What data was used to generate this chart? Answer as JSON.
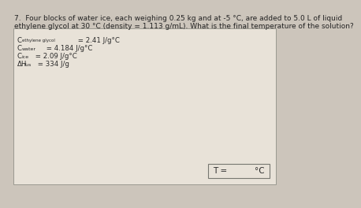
{
  "title_line1": "7.  Four blocks of water ice, each weighing 0.25 kg and at -5 °C, are added to 5.0 L of liquid",
  "title_line2": "ethylene glycol at 30 °C (density = 1.113 g/mL). What is the final temperature of the solution?",
  "line1_main": "C",
  "line1_sub": "ethylene glycol",
  "line1_rest": " = 2.41 J/g°C",
  "line2_main": "C",
  "line2_sub": "water",
  "line2_rest": " = 4.184 J/g°C",
  "line3_main": "C",
  "line3_sub": "ice",
  "line3_rest": " = 2.09 J/g°C",
  "line4_main": "ΔH",
  "line4_sub": "fus",
  "line4_rest": " = 334 J/g",
  "answer_label": "T =",
  "answer_unit": "°C",
  "bg_color": "#ccc5bb",
  "box_bg": "#e8e2d8",
  "answer_box_bg": "#e8e2d8",
  "title_fontsize": 6.5,
  "given_main_fontsize": 6.2,
  "given_sub_fontsize": 4.8,
  "answer_fontsize": 7.5,
  "box_edge_color": "#999990",
  "ans_box_edge_color": "#777770"
}
